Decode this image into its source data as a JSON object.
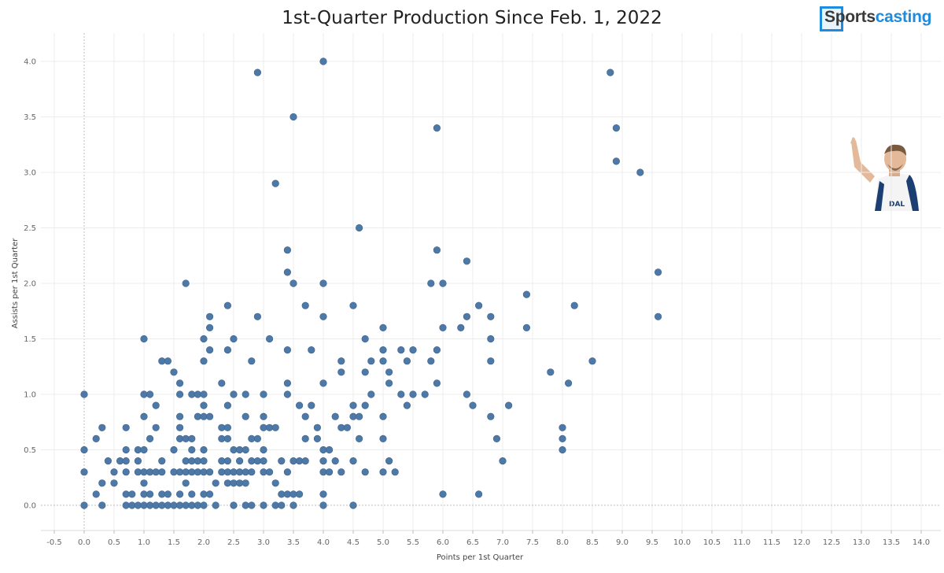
{
  "header": {
    "title": "1st-Quarter Production Since Feb. 1, 2022"
  },
  "logo": {
    "text_part1": "Sports",
    "text_part2": "casting",
    "icon": "sportscasting-logo-icon"
  },
  "player_image": {
    "icon": "basketball-player-photo"
  },
  "colors": {
    "point": "#4e79a7",
    "point_stroke": "#3b6390",
    "grid": "#ececec",
    "zero_line": "#bdbdbd",
    "logo_blue": "#1d8ce0"
  },
  "chart_data": {
    "type": "scatter",
    "title": "1st-Quarter Production Since Feb. 1, 2022",
    "xlabel": "Points per 1st Quarter",
    "ylabel": "Assists per 1st Quarter",
    "xlim": [
      -0.5,
      14.0
    ],
    "ylim": [
      0.0,
      4.0
    ],
    "x_ticks": [
      "-0.5",
      "0.0",
      "0.5",
      "1.0",
      "1.5",
      "2.0",
      "2.5",
      "3.0",
      "3.5",
      "4.0",
      "4.5",
      "5.0",
      "5.5",
      "6.0",
      "6.5",
      "7.0",
      "7.5",
      "8.0",
      "8.5",
      "9.0",
      "9.5",
      "10.0",
      "10.5",
      "11.0",
      "11.5",
      "12.0",
      "12.5",
      "13.0",
      "13.5",
      "14.0"
    ],
    "y_ticks": [
      "0.0",
      "0.5",
      "1.0",
      "1.5",
      "2.0",
      "2.5",
      "3.0",
      "3.5",
      "4.0"
    ],
    "grid": true,
    "points": [
      [
        0.0,
        0.0
      ],
      [
        0.0,
        0.3
      ],
      [
        0.0,
        0.5
      ],
      [
        0.0,
        1.0
      ],
      [
        0.2,
        0.1
      ],
      [
        0.2,
        0.6
      ],
      [
        0.3,
        0.0
      ],
      [
        0.3,
        0.2
      ],
      [
        0.3,
        0.7
      ],
      [
        0.4,
        0.4
      ],
      [
        0.5,
        0.2
      ],
      [
        0.5,
        0.3
      ],
      [
        0.6,
        0.4
      ],
      [
        0.7,
        0.0
      ],
      [
        0.7,
        0.1
      ],
      [
        0.7,
        0.3
      ],
      [
        0.7,
        0.4
      ],
      [
        0.7,
        0.5
      ],
      [
        0.7,
        0.7
      ],
      [
        0.8,
        0.0
      ],
      [
        0.8,
        0.1
      ],
      [
        0.9,
        0.0
      ],
      [
        0.9,
        0.3
      ],
      [
        0.9,
        0.4
      ],
      [
        0.9,
        0.5
      ],
      [
        1.0,
        0.0
      ],
      [
        1.0,
        0.1
      ],
      [
        1.0,
        0.2
      ],
      [
        1.0,
        0.3
      ],
      [
        1.0,
        0.5
      ],
      [
        1.0,
        0.8
      ],
      [
        1.0,
        1.0
      ],
      [
        1.0,
        1.5
      ],
      [
        1.1,
        0.0
      ],
      [
        1.1,
        0.1
      ],
      [
        1.1,
        0.3
      ],
      [
        1.1,
        0.6
      ],
      [
        1.1,
        1.0
      ],
      [
        1.2,
        0.0
      ],
      [
        1.2,
        0.3
      ],
      [
        1.2,
        0.7
      ],
      [
        1.2,
        0.9
      ],
      [
        1.3,
        0.0
      ],
      [
        1.3,
        0.1
      ],
      [
        1.3,
        0.3
      ],
      [
        1.3,
        0.4
      ],
      [
        1.3,
        1.3
      ],
      [
        1.4,
        0.0
      ],
      [
        1.4,
        0.1
      ],
      [
        1.4,
        1.3
      ],
      [
        1.5,
        0.0
      ],
      [
        1.5,
        0.3
      ],
      [
        1.5,
        0.5
      ],
      [
        1.5,
        1.2
      ],
      [
        1.6,
        0.0
      ],
      [
        1.6,
        0.1
      ],
      [
        1.6,
        0.3
      ],
      [
        1.6,
        0.6
      ],
      [
        1.6,
        0.7
      ],
      [
        1.6,
        0.8
      ],
      [
        1.6,
        1.0
      ],
      [
        1.6,
        1.1
      ],
      [
        1.7,
        0.0
      ],
      [
        1.7,
        0.2
      ],
      [
        1.7,
        0.3
      ],
      [
        1.7,
        0.4
      ],
      [
        1.7,
        0.6
      ],
      [
        1.7,
        2.0
      ],
      [
        1.8,
        0.0
      ],
      [
        1.8,
        0.1
      ],
      [
        1.8,
        0.3
      ],
      [
        1.8,
        0.4
      ],
      [
        1.8,
        0.5
      ],
      [
        1.8,
        0.6
      ],
      [
        1.8,
        1.0
      ],
      [
        1.9,
        0.0
      ],
      [
        1.9,
        0.3
      ],
      [
        1.9,
        0.4
      ],
      [
        1.9,
        0.8
      ],
      [
        1.9,
        1.0
      ],
      [
        2.0,
        0.0
      ],
      [
        2.0,
        0.1
      ],
      [
        2.0,
        0.3
      ],
      [
        2.0,
        0.4
      ],
      [
        2.0,
        0.5
      ],
      [
        2.0,
        0.8
      ],
      [
        2.0,
        0.9
      ],
      [
        2.0,
        1.0
      ],
      [
        2.0,
        1.3
      ],
      [
        2.0,
        1.5
      ],
      [
        2.1,
        0.1
      ],
      [
        2.1,
        0.3
      ],
      [
        2.1,
        0.8
      ],
      [
        2.1,
        1.4
      ],
      [
        2.1,
        1.6
      ],
      [
        2.1,
        1.7
      ],
      [
        2.2,
        0.0
      ],
      [
        2.2,
        0.2
      ],
      [
        2.3,
        0.3
      ],
      [
        2.3,
        0.4
      ],
      [
        2.3,
        0.6
      ],
      [
        2.3,
        0.7
      ],
      [
        2.3,
        1.1
      ],
      [
        2.4,
        0.2
      ],
      [
        2.4,
        0.3
      ],
      [
        2.4,
        0.4
      ],
      [
        2.4,
        0.6
      ],
      [
        2.4,
        0.7
      ],
      [
        2.4,
        0.9
      ],
      [
        2.4,
        1.4
      ],
      [
        2.4,
        1.8
      ],
      [
        2.5,
        0.0
      ],
      [
        2.5,
        0.2
      ],
      [
        2.5,
        0.3
      ],
      [
        2.5,
        0.5
      ],
      [
        2.5,
        1.0
      ],
      [
        2.5,
        1.5
      ],
      [
        2.6,
        0.2
      ],
      [
        2.6,
        0.3
      ],
      [
        2.6,
        0.4
      ],
      [
        2.6,
        0.5
      ],
      [
        2.7,
        0.0
      ],
      [
        2.7,
        0.2
      ],
      [
        2.7,
        0.3
      ],
      [
        2.7,
        0.5
      ],
      [
        2.7,
        0.8
      ],
      [
        2.7,
        1.0
      ],
      [
        2.8,
        0.0
      ],
      [
        2.8,
        0.3
      ],
      [
        2.8,
        0.4
      ],
      [
        2.8,
        0.6
      ],
      [
        2.8,
        1.3
      ],
      [
        2.9,
        0.4
      ],
      [
        2.9,
        0.6
      ],
      [
        2.9,
        1.7
      ],
      [
        2.9,
        3.9
      ],
      [
        3.0,
        0.0
      ],
      [
        3.0,
        0.3
      ],
      [
        3.0,
        0.4
      ],
      [
        3.0,
        0.5
      ],
      [
        3.0,
        0.7
      ],
      [
        3.0,
        0.8
      ],
      [
        3.0,
        1.0
      ],
      [
        3.1,
        0.3
      ],
      [
        3.1,
        0.7
      ],
      [
        3.1,
        1.5
      ],
      [
        3.2,
        0.0
      ],
      [
        3.2,
        0.2
      ],
      [
        3.2,
        0.7
      ],
      [
        3.2,
        2.9
      ],
      [
        3.3,
        0.0
      ],
      [
        3.3,
        0.1
      ],
      [
        3.3,
        0.4
      ],
      [
        3.4,
        0.1
      ],
      [
        3.4,
        0.3
      ],
      [
        3.4,
        1.0
      ],
      [
        3.4,
        1.1
      ],
      [
        3.4,
        1.4
      ],
      [
        3.4,
        2.1
      ],
      [
        3.4,
        2.3
      ],
      [
        3.5,
        0.0
      ],
      [
        3.5,
        0.1
      ],
      [
        3.5,
        0.4
      ],
      [
        3.5,
        2.0
      ],
      [
        3.5,
        3.5
      ],
      [
        3.6,
        0.1
      ],
      [
        3.6,
        0.4
      ],
      [
        3.6,
        0.9
      ],
      [
        3.7,
        0.4
      ],
      [
        3.7,
        0.6
      ],
      [
        3.7,
        0.8
      ],
      [
        3.7,
        1.8
      ],
      [
        3.8,
        0.9
      ],
      [
        3.8,
        1.4
      ],
      [
        3.9,
        0.6
      ],
      [
        3.9,
        0.7
      ],
      [
        4.0,
        0.0
      ],
      [
        4.0,
        0.1
      ],
      [
        4.0,
        0.3
      ],
      [
        4.0,
        0.4
      ],
      [
        4.0,
        0.5
      ],
      [
        4.0,
        1.1
      ],
      [
        4.0,
        1.7
      ],
      [
        4.0,
        2.0
      ],
      [
        4.0,
        4.0
      ],
      [
        4.1,
        0.3
      ],
      [
        4.1,
        0.5
      ],
      [
        4.2,
        0.4
      ],
      [
        4.2,
        0.8
      ],
      [
        4.3,
        0.3
      ],
      [
        4.3,
        0.7
      ],
      [
        4.3,
        1.2
      ],
      [
        4.3,
        1.3
      ],
      [
        4.4,
        0.7
      ],
      [
        4.5,
        0.0
      ],
      [
        4.5,
        0.4
      ],
      [
        4.5,
        0.8
      ],
      [
        4.5,
        0.9
      ],
      [
        4.5,
        1.8
      ],
      [
        4.6,
        0.6
      ],
      [
        4.6,
        0.8
      ],
      [
        4.6,
        2.5
      ],
      [
        4.7,
        0.3
      ],
      [
        4.7,
        0.9
      ],
      [
        4.7,
        1.2
      ],
      [
        4.7,
        1.5
      ],
      [
        4.8,
        1.0
      ],
      [
        4.8,
        1.3
      ],
      [
        5.0,
        0.3
      ],
      [
        5.0,
        0.6
      ],
      [
        5.0,
        0.8
      ],
      [
        5.0,
        1.3
      ],
      [
        5.0,
        1.4
      ],
      [
        5.0,
        1.6
      ],
      [
        5.1,
        0.4
      ],
      [
        5.1,
        1.1
      ],
      [
        5.1,
        1.2
      ],
      [
        5.2,
        0.3
      ],
      [
        5.3,
        1.0
      ],
      [
        5.3,
        1.4
      ],
      [
        5.4,
        0.9
      ],
      [
        5.4,
        1.3
      ],
      [
        5.5,
        1.0
      ],
      [
        5.5,
        1.4
      ],
      [
        5.7,
        1.0
      ],
      [
        5.8,
        1.3
      ],
      [
        5.8,
        2.0
      ],
      [
        5.9,
        1.1
      ],
      [
        5.9,
        1.4
      ],
      [
        5.9,
        2.3
      ],
      [
        5.9,
        3.4
      ],
      [
        6.0,
        0.1
      ],
      [
        6.0,
        1.6
      ],
      [
        6.0,
        2.0
      ],
      [
        6.3,
        1.6
      ],
      [
        6.4,
        1.0
      ],
      [
        6.4,
        1.7
      ],
      [
        6.4,
        2.2
      ],
      [
        6.5,
        0.9
      ],
      [
        6.6,
        0.1
      ],
      [
        6.6,
        1.8
      ],
      [
        6.8,
        0.8
      ],
      [
        6.8,
        1.3
      ],
      [
        6.8,
        1.5
      ],
      [
        6.8,
        1.7
      ],
      [
        6.9,
        0.6
      ],
      [
        7.0,
        0.4
      ],
      [
        7.1,
        0.9
      ],
      [
        7.4,
        1.6
      ],
      [
        7.4,
        1.9
      ],
      [
        7.8,
        1.2
      ],
      [
        8.0,
        0.5
      ],
      [
        8.0,
        0.6
      ],
      [
        8.0,
        0.7
      ],
      [
        8.1,
        1.1
      ],
      [
        8.2,
        1.8
      ],
      [
        8.5,
        1.3
      ],
      [
        8.8,
        3.9
      ],
      [
        8.9,
        3.1
      ],
      [
        8.9,
        3.4
      ],
      [
        9.3,
        3.0
      ],
      [
        9.6,
        1.7
      ],
      [
        9.6,
        2.1
      ]
    ]
  }
}
